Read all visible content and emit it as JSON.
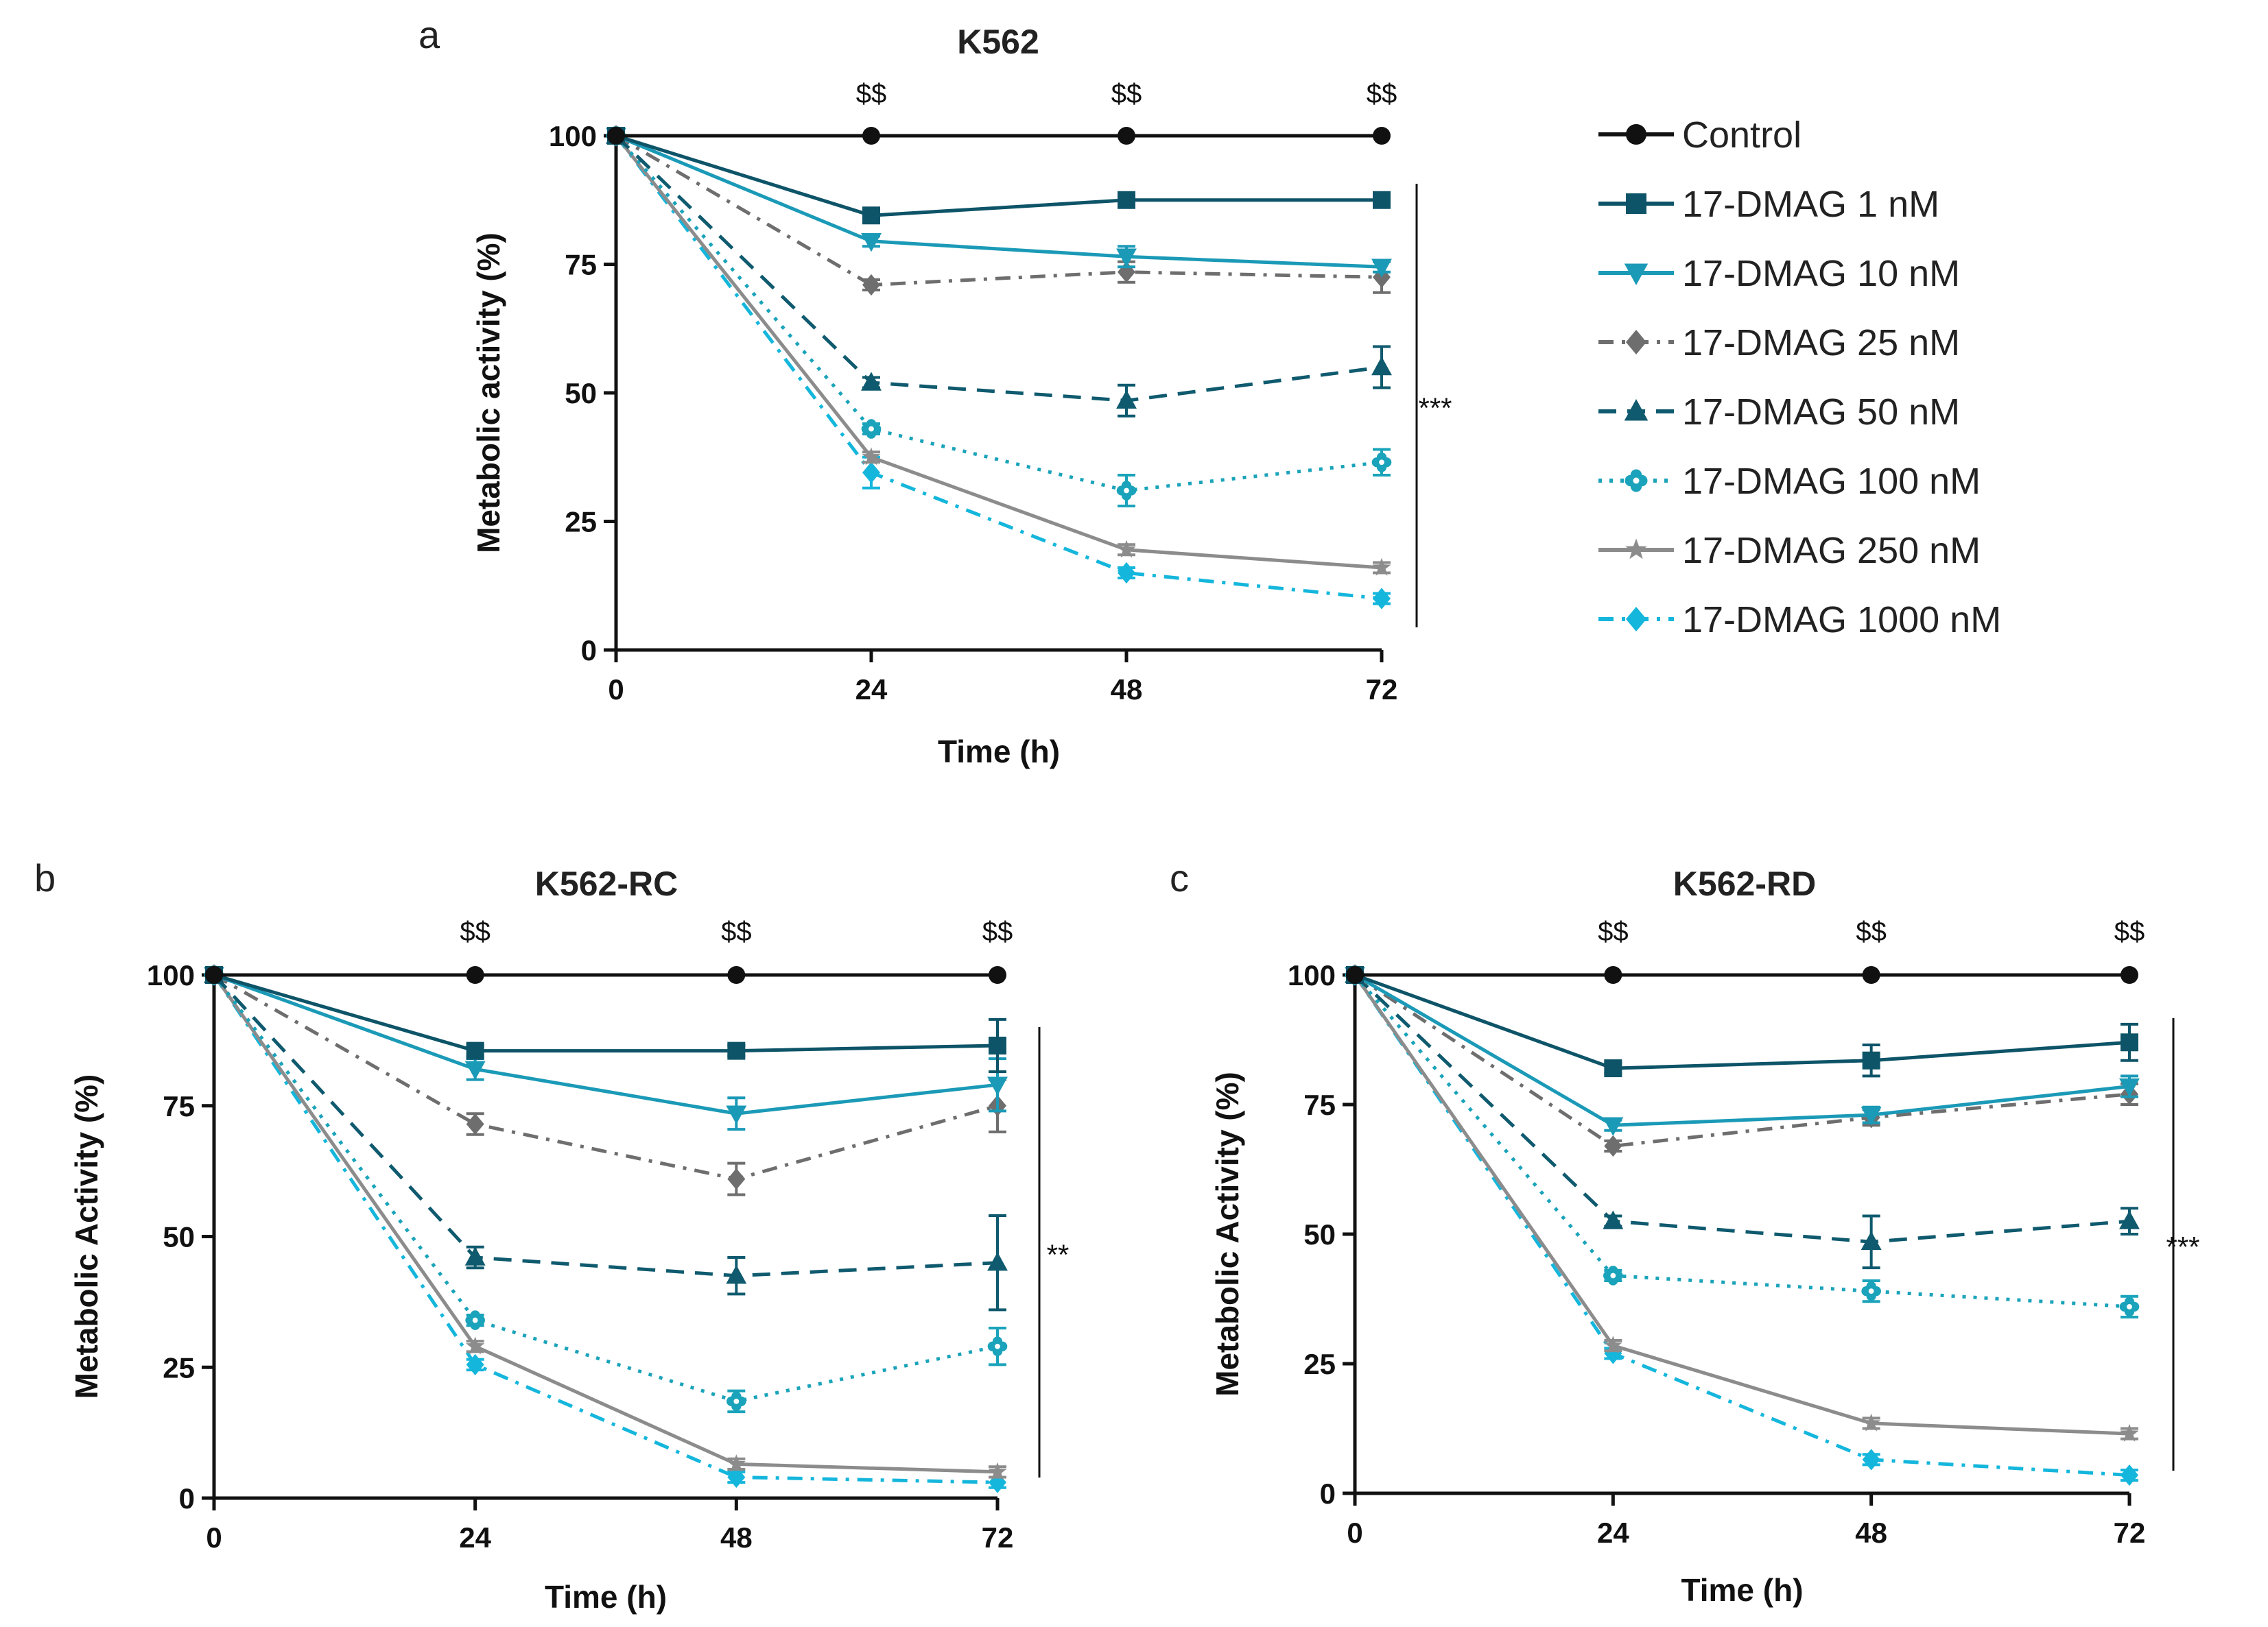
{
  "chart_data": [
    {
      "type": "line",
      "panel_letter": "a",
      "title": "K562",
      "xlabel": "Time (h)",
      "ylabel": "Metabolic activity (%)",
      "x": [
        0,
        24,
        48,
        72
      ],
      "xticks": [
        "0",
        "24",
        "48",
        "72"
      ],
      "yticks": [
        "0",
        "25",
        "50",
        "75",
        "100"
      ],
      "xlim": [
        0,
        72
      ],
      "ylim": [
        0,
        100
      ],
      "dollar_marks": [
        "$$",
        "$$",
        "$$"
      ],
      "significance": "***",
      "series": [
        {
          "name": "Control",
          "values": [
            100,
            100,
            100,
            100
          ],
          "err": [
            0,
            0,
            0,
            0
          ]
        },
        {
          "name": "17-DMAG 1 nM",
          "values": [
            100,
            84.5,
            87.5,
            87.5
          ],
          "err": [
            0,
            1,
            1,
            1
          ]
        },
        {
          "name": "17-DMAG 10 nM",
          "values": [
            100,
            79.5,
            76.5,
            74.5
          ],
          "err": [
            0,
            1,
            2,
            1
          ]
        },
        {
          "name": "17-DMAG 25 nM",
          "values": [
            100,
            71,
            73.5,
            72.5
          ],
          "err": [
            0,
            1,
            2,
            3
          ]
        },
        {
          "name": "17-DMAG 50 nM",
          "values": [
            100,
            52,
            48.5,
            55
          ],
          "err": [
            0,
            1,
            3,
            4
          ]
        },
        {
          "name": "17-DMAG 100 nM",
          "values": [
            100,
            43,
            31,
            36.5
          ],
          "err": [
            0,
            1,
            3,
            2.5
          ]
        },
        {
          "name": "17-DMAG 250 nM",
          "values": [
            100,
            37.5,
            19.5,
            16
          ],
          "err": [
            0,
            1,
            1,
            1
          ]
        },
        {
          "name": "17-DMAG 1000 nM",
          "values": [
            100,
            34.5,
            15,
            10
          ],
          "err": [
            0,
            3,
            1,
            1
          ]
        }
      ]
    },
    {
      "type": "line",
      "panel_letter": "b",
      "title": "K562-RC",
      "xlabel": "Time (h)",
      "ylabel": "Metabolic Activity (%)",
      "x": [
        0,
        24,
        48,
        72
      ],
      "xticks": [
        "0",
        "24",
        "48",
        "72"
      ],
      "yticks": [
        "0",
        "25",
        "50",
        "75",
        "100"
      ],
      "xlim": [
        0,
        72
      ],
      "ylim": [
        0,
        100
      ],
      "dollar_marks": [
        "$$",
        "$$",
        "$$"
      ],
      "significance": "**",
      "series": [
        {
          "name": "Control",
          "values": [
            100,
            100,
            100,
            100
          ],
          "err": [
            0,
            0,
            0,
            0
          ]
        },
        {
          "name": "17-DMAG 1 nM",
          "values": [
            100,
            85.5,
            85.5,
            86.5
          ],
          "err": [
            0,
            1,
            1,
            5
          ]
        },
        {
          "name": "17-DMAG 10 nM",
          "values": [
            100,
            82,
            73.5,
            79
          ],
          "err": [
            0,
            2,
            3,
            5
          ]
        },
        {
          "name": "17-DMAG 25 nM",
          "values": [
            100,
            71.5,
            61,
            75
          ],
          "err": [
            0,
            2,
            3,
            5
          ]
        },
        {
          "name": "17-DMAG 50 nM",
          "values": [
            100,
            46,
            42.5,
            45
          ],
          "err": [
            0,
            2,
            3.5,
            9
          ]
        },
        {
          "name": "17-DMAG 100 nM",
          "values": [
            100,
            34,
            18.5,
            29
          ],
          "err": [
            0,
            1,
            2,
            3.5
          ]
        },
        {
          "name": "17-DMAG 250 nM",
          "values": [
            100,
            29,
            6.5,
            5
          ],
          "err": [
            0,
            1,
            1,
            1
          ]
        },
        {
          "name": "17-DMAG 1000 nM",
          "values": [
            100,
            25.5,
            4,
            3
          ],
          "err": [
            0,
            1,
            1,
            1
          ]
        }
      ]
    },
    {
      "type": "line",
      "panel_letter": "c",
      "title": "K562-RD",
      "xlabel": "Time (h)",
      "ylabel": "Metabolic Activity (%)",
      "x": [
        0,
        24,
        48,
        72
      ],
      "xticks": [
        "0",
        "24",
        "48",
        "72"
      ],
      "yticks": [
        "0",
        "25",
        "50",
        "75",
        "100"
      ],
      "xlim": [
        0,
        72
      ],
      "ylim": [
        0,
        100
      ],
      "dollar_marks": [
        "$$",
        "$$",
        "$$"
      ],
      "significance": "***",
      "series": [
        {
          "name": "Control",
          "values": [
            100,
            100,
            100,
            100
          ],
          "err": [
            0,
            0,
            0,
            0
          ]
        },
        {
          "name": "17-DMAG 1 nM",
          "values": [
            100,
            82,
            83.5,
            87
          ],
          "err": [
            0,
            1,
            3,
            3.5
          ]
        },
        {
          "name": "17-DMAG 10 nM",
          "values": [
            100,
            71,
            73,
            78.5
          ],
          "err": [
            0,
            1,
            1.5,
            2
          ]
        },
        {
          "name": "17-DMAG 25 nM",
          "values": [
            100,
            67,
            72.5,
            77
          ],
          "err": [
            0,
            1,
            1.5,
            2
          ]
        },
        {
          "name": "17-DMAG 50 nM",
          "values": [
            100,
            52.5,
            48.5,
            52.5
          ],
          "err": [
            0,
            1,
            5,
            2.5
          ]
        },
        {
          "name": "17-DMAG 100 nM",
          "values": [
            100,
            42,
            39,
            36
          ],
          "err": [
            0,
            1,
            2,
            2
          ]
        },
        {
          "name": "17-DMAG 250 nM",
          "values": [
            100,
            28.5,
            13.5,
            11.5
          ],
          "err": [
            0,
            1,
            1,
            1
          ]
        },
        {
          "name": "17-DMAG 1000 nM",
          "values": [
            100,
            27,
            6.5,
            3.5
          ],
          "err": [
            0,
            1,
            1,
            1
          ]
        }
      ]
    }
  ],
  "legend": {
    "placement": "right of panel a",
    "entries": [
      {
        "label": "Control",
        "color": "#111111",
        "marker": "circle",
        "dash": "solid"
      },
      {
        "label": "17-DMAG 1 nM",
        "color": "#0e5468",
        "marker": "square",
        "dash": "solid"
      },
      {
        "label": "17-DMAG 10 nM",
        "color": "#1b9ab7",
        "marker": "triangle-down",
        "dash": "solid"
      },
      {
        "label": "17-DMAG 25 nM",
        "color": "#6e6e6e",
        "marker": "diamond",
        "dash": "dashdot"
      },
      {
        "label": "17-DMAG 50 nM",
        "color": "#0f5a6e",
        "marker": "triangle-up",
        "dash": "dashed"
      },
      {
        "label": "17-DMAG 100 nM",
        "color": "#1aa3ba",
        "marker": "flower",
        "dash": "dotted"
      },
      {
        "label": "17-DMAG 250 nM",
        "color": "#8c8c8c",
        "marker": "star",
        "dash": "solid"
      },
      {
        "label": "17-DMAG 1000 nM",
        "color": "#15b6dc",
        "marker": "diamond",
        "dash": "dashdot"
      }
    ]
  }
}
